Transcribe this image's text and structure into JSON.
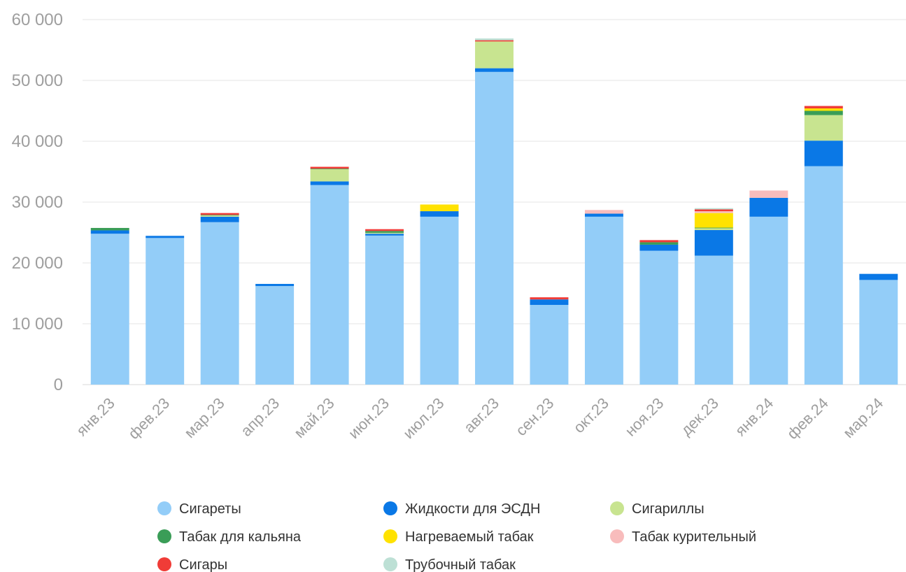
{
  "chart_data": {
    "type": "bar",
    "stacked": true,
    "grid": true,
    "legend_position": "bottom",
    "ylim": [
      0,
      60000
    ],
    "yticks": [
      0,
      10000,
      20000,
      30000,
      40000,
      50000,
      60000
    ],
    "ytick_labels": [
      "0",
      "10 000",
      "20 000",
      "30 000",
      "40 000",
      "50 000",
      "60 000"
    ],
    "categories": [
      "янв.23",
      "фев.23",
      "мар.23",
      "апр.23",
      "май.23",
      "июн.23",
      "июл.23",
      "авг.23",
      "сен.23",
      "окт.23",
      "ноя.23",
      "дек.23",
      "янв.24",
      "фев.24",
      "мар.24"
    ],
    "series": [
      {
        "name": "Сигареты",
        "color": "#93cdf8",
        "values": [
          24800,
          24100,
          26700,
          16200,
          32800,
          24500,
          27600,
          51400,
          13100,
          27600,
          22000,
          21200,
          27600,
          35900,
          17200
        ]
      },
      {
        "name": "Жидкости для ЭСДН",
        "color": "#0a78e6",
        "values": [
          550,
          350,
          900,
          350,
          600,
          300,
          900,
          600,
          900,
          500,
          1000,
          4200,
          3100,
          4200,
          1000
        ]
      },
      {
        "name": "Сигариллы",
        "color": "#c8e490",
        "values": [
          0,
          0,
          200,
          0,
          2000,
          150,
          0,
          4400,
          0,
          0,
          0,
          300,
          0,
          4200,
          0
        ]
      },
      {
        "name": "Табак для кальяна",
        "color": "#3a9d57",
        "values": [
          400,
          0,
          100,
          0,
          100,
          300,
          0,
          0,
          0,
          0,
          400,
          100,
          0,
          700,
          0
        ]
      },
      {
        "name": "Нагреваемый табак",
        "color": "#ffe200",
        "values": [
          0,
          0,
          0,
          0,
          0,
          0,
          1100,
          0,
          0,
          0,
          0,
          2400,
          0,
          400,
          0
        ]
      },
      {
        "name": "Табак курительный",
        "color": "#f8bcbc",
        "values": [
          0,
          0,
          0,
          0,
          0,
          0,
          0,
          0,
          0,
          600,
          0,
          300,
          1200,
          0,
          0
        ]
      },
      {
        "name": "Сигары",
        "color": "#f03c37",
        "values": [
          0,
          0,
          300,
          0,
          300,
          300,
          0,
          200,
          350,
          0,
          350,
          300,
          0,
          400,
          0
        ]
      },
      {
        "name": "Трубочный табак",
        "color": "#bde0d5",
        "values": [
          0,
          0,
          0,
          0,
          0,
          0,
          0,
          300,
          0,
          0,
          0,
          200,
          0,
          0,
          0
        ]
      }
    ]
  }
}
